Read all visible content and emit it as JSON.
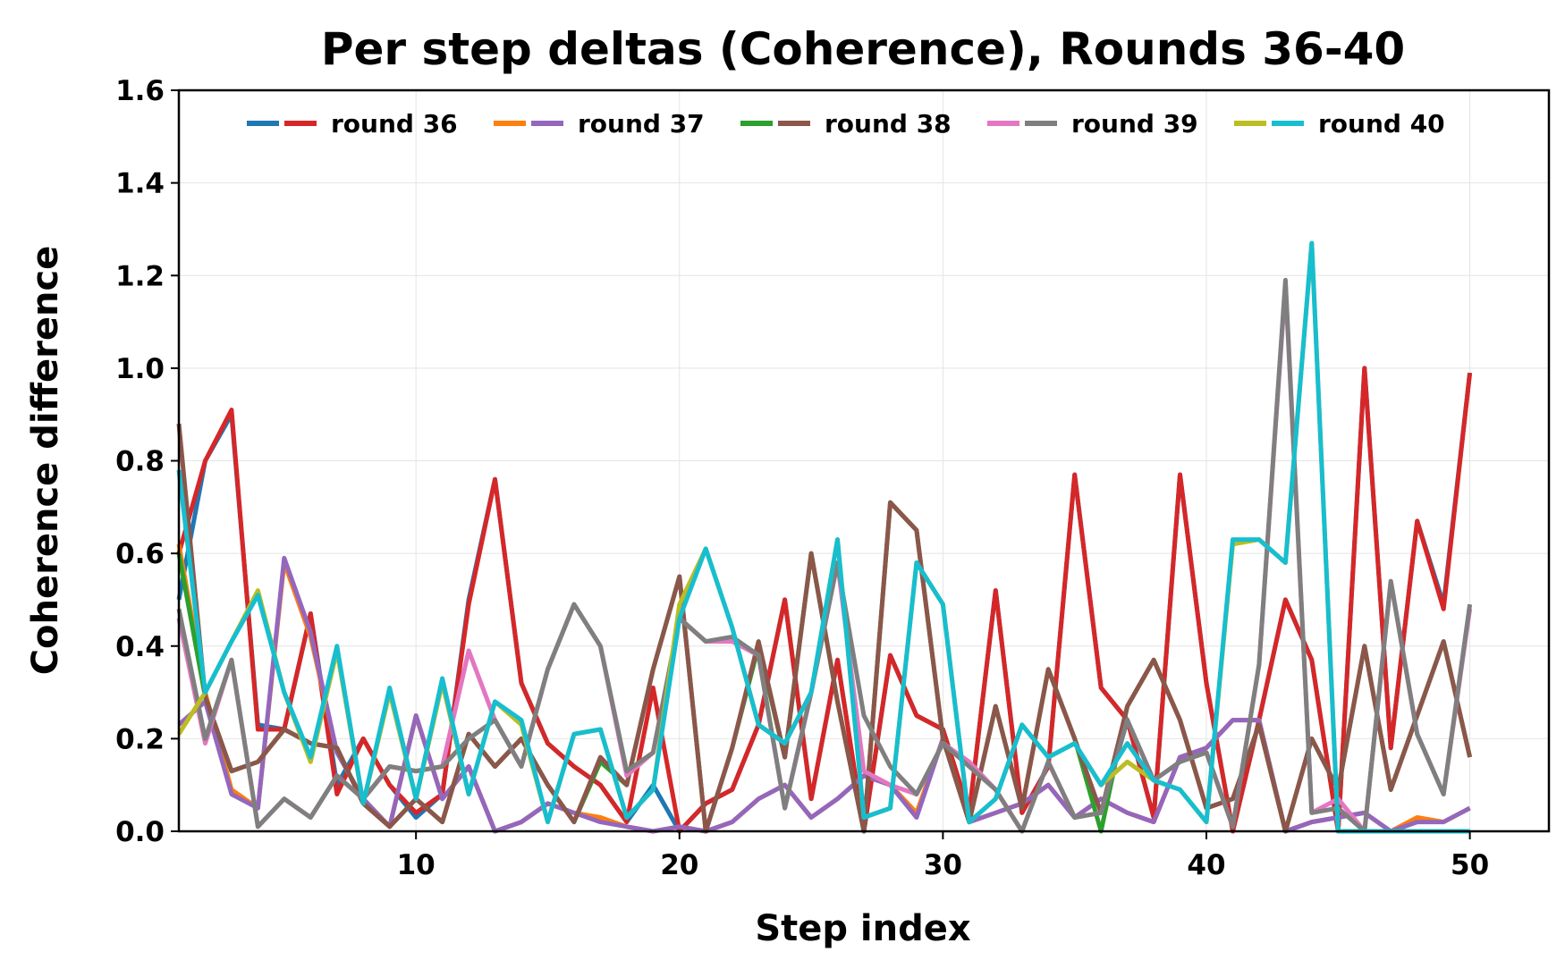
{
  "chart_data": {
    "type": "line",
    "title": "Per step deltas (Coherence), Rounds 36-40",
    "xlabel": "Step index",
    "ylabel": "Coherence difference",
    "xlim": [
      1,
      53
    ],
    "ylim": [
      0,
      1.6
    ],
    "x_ticks": [
      10,
      20,
      30,
      40,
      50
    ],
    "y_ticks": [
      "0.0",
      "0.2",
      "0.4",
      "0.6",
      "0.8",
      "1.0",
      "1.2",
      "1.4",
      "1.6"
    ],
    "grid": true,
    "legend_position": "top",
    "legend": [
      {
        "label": "round 36",
        "colors": [
          "#1f77b4",
          "#d62728"
        ]
      },
      {
        "label": "round 37",
        "colors": [
          "#ff7f0e",
          "#9467bd"
        ]
      },
      {
        "label": "round 38",
        "colors": [
          "#2ca02c",
          "#8c564b"
        ]
      },
      {
        "label": "round 39",
        "colors": [
          "#e377c2",
          "#7f7f7f"
        ]
      },
      {
        "label": "round 40",
        "colors": [
          "#bcbd22",
          "#17becf"
        ]
      }
    ],
    "x": [
      1,
      2,
      3,
      4,
      5,
      6,
      7,
      8,
      9,
      10,
      11,
      12,
      13,
      14,
      15,
      16,
      17,
      18,
      19,
      20,
      21,
      22,
      23,
      24,
      25,
      26,
      27,
      28,
      29,
      30,
      31,
      32,
      33,
      34,
      35,
      36,
      37,
      38,
      39,
      40,
      41,
      42,
      43,
      44,
      45,
      46,
      47,
      48,
      49,
      50
    ],
    "series": [
      {
        "color": "#1f77b4",
        "values": [
          0.5,
          0.8,
          0.9,
          0.23,
          0.22,
          0.47,
          0.1,
          0.2,
          0.1,
          0.03,
          0.08,
          0.5,
          0.76,
          0.32,
          0.19,
          0.14,
          0.1,
          0.02,
          0.1,
          0.0,
          0.06,
          0.09,
          0.23,
          0.5,
          0.07,
          0.37,
          0.0,
          0.38,
          0.25,
          0.22,
          0.04,
          0.52,
          0.04,
          0.14,
          0.77,
          0.31,
          0.24,
          0.03,
          0.77,
          0.32,
          0.0,
          0.24,
          0.5,
          0.37,
          0.0,
          1.0,
          0.18,
          0.67,
          0.49,
          0.99
        ]
      },
      {
        "color": "#d62728",
        "values": [
          0.6,
          0.8,
          0.91,
          0.22,
          0.22,
          0.47,
          0.08,
          0.2,
          0.1,
          0.04,
          0.08,
          0.49,
          0.76,
          0.32,
          0.19,
          0.14,
          0.1,
          0.02,
          0.31,
          0.0,
          0.06,
          0.09,
          0.23,
          0.5,
          0.07,
          0.37,
          0.0,
          0.38,
          0.25,
          0.22,
          0.04,
          0.52,
          0.04,
          0.14,
          0.77,
          0.31,
          0.24,
          0.03,
          0.77,
          0.32,
          0.0,
          0.24,
          0.5,
          0.37,
          0.0,
          1.0,
          0.18,
          0.67,
          0.48,
          0.99
        ]
      },
      {
        "color": "#ff7f0e",
        "values": [
          0.62,
          0.3,
          0.09,
          0.05,
          0.58,
          0.42,
          0.17,
          0.07,
          0.01,
          0.25,
          0.07,
          0.14,
          0.0,
          0.02,
          0.06,
          0.04,
          0.03,
          0.01,
          0.0,
          0.01,
          0.0,
          0.02,
          0.07,
          0.1,
          0.03,
          0.07,
          0.12,
          0.1,
          0.04,
          0.2,
          0.02,
          0.04,
          0.06,
          0.1,
          0.03,
          0.07,
          0.04,
          0.02,
          0.16,
          0.18,
          0.24,
          0.24,
          0.0,
          0.02,
          0.03,
          0.04,
          0.0,
          0.03,
          0.02,
          0.05
        ]
      },
      {
        "color": "#9467bd",
        "values": [
          0.23,
          0.28,
          0.08,
          0.05,
          0.59,
          0.43,
          0.17,
          0.07,
          0.01,
          0.25,
          0.07,
          0.14,
          0.0,
          0.02,
          0.06,
          0.04,
          0.02,
          0.01,
          0.0,
          0.01,
          0.0,
          0.02,
          0.07,
          0.1,
          0.03,
          0.07,
          0.12,
          0.1,
          0.03,
          0.2,
          0.02,
          0.04,
          0.06,
          0.1,
          0.03,
          0.07,
          0.04,
          0.02,
          0.16,
          0.18,
          0.24,
          0.24,
          0.0,
          0.02,
          0.03,
          0.04,
          0.0,
          0.02,
          0.02,
          0.05
        ]
      },
      {
        "color": "#2ca02c",
        "values": [
          0.6,
          0.29,
          0.13,
          0.15,
          0.22,
          0.19,
          0.18,
          0.06,
          0.01,
          0.07,
          0.02,
          0.21,
          0.14,
          0.2,
          0.1,
          0.02,
          0.15,
          0.1,
          0.35,
          0.55,
          0.0,
          0.18,
          0.4,
          0.16,
          0.6,
          0.28,
          0.0,
          0.71,
          0.65,
          0.2,
          0.02,
          0.27,
          0.05,
          0.35,
          0.2,
          0.0,
          0.27,
          0.37,
          0.24,
          0.05,
          0.07,
          0.23,
          0.0,
          0.2,
          0.09,
          0.4,
          0.09,
          0.25,
          0.41,
          0.16
        ]
      },
      {
        "color": "#8c564b",
        "values": [
          0.88,
          0.29,
          0.13,
          0.15,
          0.22,
          0.19,
          0.18,
          0.06,
          0.01,
          0.07,
          0.02,
          0.21,
          0.14,
          0.2,
          0.1,
          0.02,
          0.16,
          0.1,
          0.35,
          0.55,
          0.0,
          0.18,
          0.41,
          0.16,
          0.6,
          0.28,
          0.0,
          0.71,
          0.65,
          0.2,
          0.02,
          0.27,
          0.05,
          0.35,
          0.2,
          0.04,
          0.27,
          0.37,
          0.24,
          0.05,
          0.07,
          0.23,
          0.0,
          0.2,
          0.09,
          0.4,
          0.09,
          0.25,
          0.41,
          0.16
        ]
      },
      {
        "color": "#e377c2",
        "values": [
          0.46,
          0.19,
          0.37,
          0.01,
          0.07,
          0.03,
          0.12,
          0.07,
          0.14,
          0.13,
          0.14,
          0.39,
          0.24,
          0.14,
          0.35,
          0.49,
          0.4,
          0.12,
          0.17,
          0.46,
          0.41,
          0.41,
          0.38,
          0.05,
          0.3,
          0.58,
          0.13,
          0.1,
          0.08,
          0.19,
          0.15,
          0.09,
          0.0,
          0.15,
          0.03,
          0.04,
          0.24,
          0.11,
          0.15,
          0.17,
          0.01,
          0.36,
          1.18,
          0.04,
          0.07,
          0.0,
          0.54,
          0.21,
          0.08,
          0.48
        ]
      },
      {
        "color": "#7f7f7f",
        "values": [
          0.48,
          0.2,
          0.37,
          0.01,
          0.07,
          0.03,
          0.12,
          0.07,
          0.14,
          0.13,
          0.14,
          0.2,
          0.24,
          0.14,
          0.35,
          0.49,
          0.4,
          0.13,
          0.17,
          0.46,
          0.41,
          0.42,
          0.38,
          0.05,
          0.3,
          0.58,
          0.25,
          0.14,
          0.08,
          0.19,
          0.14,
          0.09,
          0.0,
          0.15,
          0.03,
          0.04,
          0.24,
          0.11,
          0.15,
          0.17,
          0.01,
          0.36,
          1.19,
          0.04,
          0.05,
          0.0,
          0.54,
          0.21,
          0.08,
          0.49
        ]
      },
      {
        "color": "#bcbd22",
        "values": [
          0.21,
          0.3,
          0.41,
          0.52,
          0.3,
          0.15,
          0.39,
          0.06,
          0.3,
          0.07,
          0.32,
          0.08,
          0.28,
          0.23,
          0.02,
          0.21,
          0.22,
          0.03,
          0.09,
          0.49,
          0.61,
          0.44,
          0.23,
          0.19,
          0.3,
          0.63,
          0.03,
          0.05,
          0.58,
          0.49,
          0.02,
          0.07,
          0.23,
          0.16,
          0.19,
          0.1,
          0.15,
          0.11,
          0.09,
          0.02,
          0.62,
          0.63,
          0.58,
          1.27,
          0.0,
          0.0,
          0.0,
          0.0,
          0.0,
          0.0
        ]
      },
      {
        "color": "#17becf",
        "values": [
          0.78,
          0.3,
          0.41,
          0.51,
          0.3,
          0.16,
          0.4,
          0.06,
          0.31,
          0.07,
          0.33,
          0.08,
          0.28,
          0.24,
          0.02,
          0.21,
          0.22,
          0.03,
          0.09,
          0.46,
          0.61,
          0.44,
          0.23,
          0.19,
          0.3,
          0.63,
          0.03,
          0.05,
          0.58,
          0.49,
          0.02,
          0.07,
          0.23,
          0.16,
          0.19,
          0.1,
          0.19,
          0.11,
          0.09,
          0.02,
          0.63,
          0.63,
          0.58,
          1.27,
          0.0,
          0.0,
          0.0,
          0.0,
          0.0,
          0.0
        ]
      }
    ]
  }
}
